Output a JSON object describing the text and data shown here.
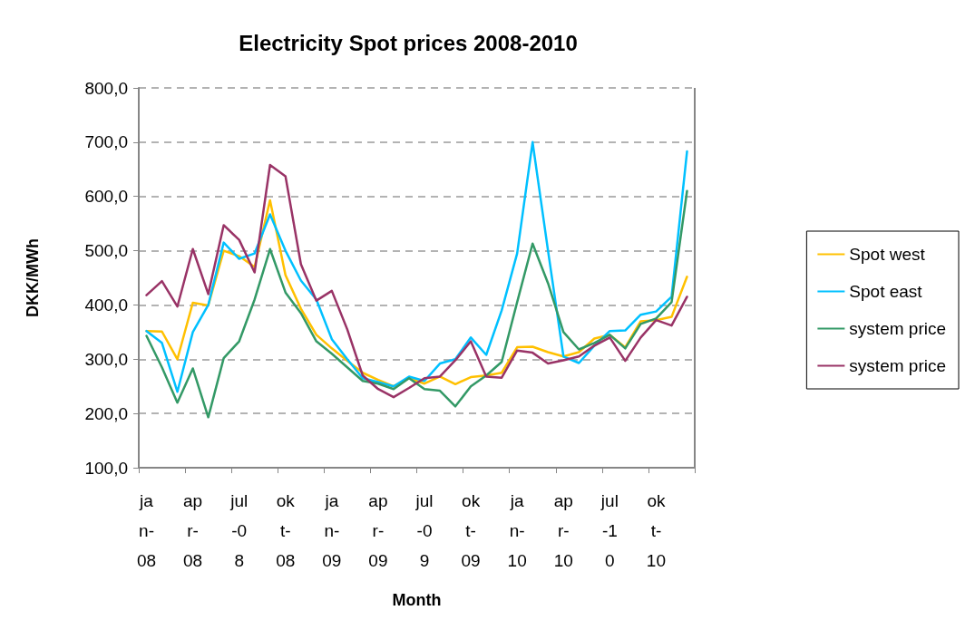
{
  "chart_data": {
    "type": "line",
    "title": "Electricity Spot prices 2008-2010",
    "xlabel": "Month",
    "ylabel": "DKK/MWh",
    "categories": [
      "jan-08",
      null,
      null,
      "apr-08",
      null,
      null,
      "jul-08",
      null,
      null,
      "okt-08",
      null,
      null,
      "jan-09",
      null,
      null,
      "apr-09",
      null,
      null,
      "jul-09",
      null,
      null,
      "okt-09",
      null,
      null,
      "jan-10",
      null,
      null,
      "apr-10",
      null,
      null,
      "jul-10",
      null,
      null,
      "okt-10",
      null,
      null
    ],
    "series": [
      {
        "name": "Spot west",
        "color": "#ffc000",
        "values": [
          352,
          351,
          300,
          404,
          399,
          500,
          490,
          470,
          593,
          455,
          393,
          345,
          320,
          297,
          275,
          262,
          250,
          265,
          255,
          268,
          254,
          267,
          270,
          275,
          322,
          323,
          313,
          305,
          313,
          338,
          345,
          322,
          370,
          372,
          378,
          452
        ]
      },
      {
        "name": "Spot east",
        "color": "#00c0ff",
        "values": [
          352,
          330,
          240,
          350,
          400,
          515,
          485,
          495,
          567,
          500,
          445,
          410,
          337,
          300,
          265,
          258,
          250,
          268,
          260,
          292,
          300,
          340,
          308,
          390,
          495,
          700,
          500,
          305,
          293,
          325,
          352,
          353,
          382,
          388,
          415,
          683
        ]
      },
      {
        "name": "system price",
        "color": "#339966",
        "values": [
          343,
          285,
          220,
          283,
          193,
          302,
          333,
          410,
          503,
          423,
          385,
          333,
          310,
          285,
          260,
          255,
          245,
          265,
          245,
          242,
          213,
          250,
          270,
          295,
          405,
          513,
          440,
          350,
          318,
          330,
          345,
          320,
          365,
          375,
          405,
          610
        ]
      },
      {
        "name": "system price",
        "color": "#993366",
        "values": [
          418,
          444,
          397,
          503,
          420,
          547,
          520,
          460,
          658,
          637,
          475,
          408,
          426,
          355,
          270,
          245,
          230,
          247,
          265,
          268,
          298,
          333,
          268,
          266,
          316,
          312,
          292,
          298,
          305,
          325,
          340,
          297,
          340,
          372,
          362,
          415
        ]
      }
    ],
    "ylim": [
      100,
      800
    ],
    "yticks": [
      {
        "value": 100,
        "label": "100,0"
      },
      {
        "value": 200,
        "label": "200,0"
      },
      {
        "value": 300,
        "label": "300,0"
      },
      {
        "value": 400,
        "label": "400,0"
      },
      {
        "value": 500,
        "label": "500,0"
      },
      {
        "value": 600,
        "label": "600,0"
      },
      {
        "value": 700,
        "label": "700,0"
      },
      {
        "value": 800,
        "label": "800,0"
      }
    ],
    "grid": "y",
    "legend": "right",
    "marker": "none",
    "line_style": "solid"
  }
}
